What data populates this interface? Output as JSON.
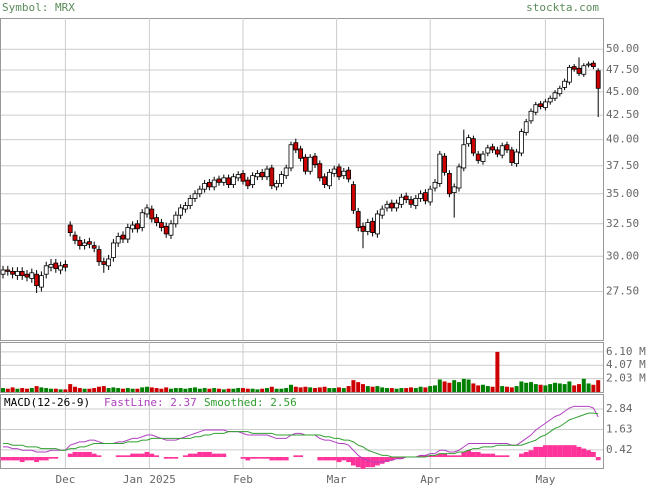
{
  "header": {
    "symbol": "Symbol: MRX",
    "site": "stockta.com"
  },
  "chart_data": [
    {
      "type": "candlestick",
      "log_scale": true,
      "grid": true,
      "up_color": "#ffffff",
      "down_color": "#cc0000",
      "ylim": [
        24.4,
        54
      ],
      "yticks": [
        {
          "value": 50,
          "label": "50.00"
        },
        {
          "value": 47.5,
          "label": "47.50"
        },
        {
          "value": 45,
          "label": "45.00"
        },
        {
          "value": 42.5,
          "label": "42.50"
        },
        {
          "value": 40,
          "label": "40.00"
        },
        {
          "value": 37.5,
          "label": "37.50"
        },
        {
          "value": 35,
          "label": "35.00"
        },
        {
          "value": 32.5,
          "label": "32.50"
        },
        {
          "value": 30,
          "label": "30.00"
        },
        {
          "value": 27.5,
          "label": "27.50"
        }
      ],
      "xticks": [
        {
          "value": 13,
          "label": "Dec"
        },
        {
          "value": 30.5,
          "label": "Jan 2025"
        },
        {
          "value": 50,
          "label": "Feb"
        },
        {
          "value": 69.5,
          "label": "Mar"
        },
        {
          "value": 89,
          "label": "Apr"
        },
        {
          "value": 113,
          "label": "May"
        }
      ],
      "open": [
        28.7,
        29.0,
        28.9,
        28.6,
        28.9,
        28.7,
        28.4,
        28.7,
        27.8,
        28.7,
        29.2,
        29.5,
        29.0,
        29.4,
        32.4,
        31.6,
        31.2,
        30.8,
        31.1,
        30.8,
        30.5,
        29.6,
        29.3,
        29.9,
        31.0,
        31.6,
        31.3,
        32.1,
        32.5,
        32.2,
        33.3,
        33.7,
        33.0,
        32.6,
        32.3,
        31.6,
        32.5,
        33.2,
        33.7,
        34.0,
        34.6,
        35.0,
        35.4,
        36.0,
        35.6,
        36.3,
        36.0,
        36.4,
        35.8,
        36.4,
        36.8,
        36.2,
        35.8,
        36.5,
        36.9,
        36.5,
        37.3,
        35.6,
        35.9,
        36.6,
        37.3,
        39.7,
        39.1,
        38.3,
        37.0,
        38.4,
        37.7,
        36.5,
        35.7,
        36.8,
        37.4,
        36.6,
        37.1,
        35.8,
        33.5,
        32.3,
        31.9,
        32.7,
        31.7,
        33.2,
        33.8,
        34.2,
        33.8,
        34.1,
        34.8,
        34.5,
        34.0,
        34.6,
        35.1,
        34.3,
        35.5,
        35.9,
        38.4,
        36.8,
        35.1,
        35.5,
        37.3,
        39.6,
        40.1,
        38.6,
        37.9,
        38.7,
        39.3,
        39.0,
        38.5,
        39.5,
        39.0,
        37.7,
        38.7,
        40.7,
        41.9,
        42.8,
        43.7,
        43.3,
        43.9,
        44.3,
        44.8,
        45.5,
        46.1,
        47.9,
        47.7,
        47.0,
        48.1,
        48.3,
        47.4
      ],
      "high": [
        29.3,
        29.3,
        29.2,
        29.2,
        29.2,
        29.0,
        29.1,
        29.0,
        28.9,
        29.6,
        29.8,
        29.8,
        29.6,
        29.7,
        32.7,
        31.9,
        31.5,
        31.3,
        31.4,
        31.1,
        30.8,
        29.9,
        30.1,
        31.3,
        31.8,
        31.9,
        32.5,
        32.7,
        32.8,
        33.7,
        34.1,
        34.0,
        33.3,
        32.9,
        32.6,
        32.8,
        33.5,
        34.1,
        34.3,
        34.9,
        35.3,
        35.7,
        36.2,
        36.3,
        36.5,
        36.6,
        36.7,
        36.7,
        36.8,
        37.0,
        37.1,
        36.5,
        36.9,
        37.1,
        37.2,
        37.5,
        37.6,
        36.2,
        37.0,
        37.6,
        39.8,
        40.1,
        39.4,
        38.6,
        38.6,
        38.7,
        38.0,
        36.8,
        37.2,
        37.5,
        37.7,
        37.3,
        37.4,
        36.1,
        33.8,
        32.6,
        32.9,
        33.0,
        33.6,
        34.0,
        34.4,
        34.5,
        34.5,
        35.0,
        35.1,
        34.8,
        34.9,
        35.3,
        35.4,
        35.7,
        36.3,
        38.9,
        38.7,
        37.1,
        35.9,
        37.7,
        41.0,
        40.5,
        40.4,
        38.9,
        38.9,
        39.5,
        39.6,
        39.3,
        39.7,
        39.8,
        39.3,
        39.1,
        41.1,
        42.1,
        43.2,
        43.9,
        44.0,
        44.2,
        44.6,
        45.2,
        45.7,
        46.5,
        48.1,
        48.2,
        49.0,
        48.3,
        48.5,
        48.6,
        47.7
      ],
      "low": [
        28.4,
        28.6,
        28.4,
        28.3,
        28.3,
        28.2,
        28.1,
        27.4,
        27.5,
        28.4,
        28.9,
        28.8,
        28.7,
        28.9,
        31.5,
        30.9,
        30.5,
        30.5,
        30.6,
        30.3,
        29.3,
        28.8,
        29.0,
        29.6,
        30.7,
        31.0,
        31.0,
        31.8,
        31.8,
        31.9,
        33.0,
        32.6,
        32.3,
        31.9,
        31.4,
        31.3,
        32.2,
        32.9,
        33.4,
        33.7,
        34.3,
        34.7,
        35.1,
        35.3,
        35.3,
        35.7,
        35.7,
        35.5,
        35.5,
        36.1,
        35.8,
        35.4,
        35.5,
        36.2,
        36.2,
        36.2,
        35.4,
        35.3,
        35.6,
        36.3,
        37.0,
        38.7,
        37.9,
        36.7,
        36.7,
        37.3,
        36.1,
        35.5,
        35.4,
        36.5,
        36.2,
        36.3,
        36.0,
        33.3,
        31.9,
        30.6,
        31.6,
        31.5,
        31.4,
        32.9,
        33.5,
        33.5,
        33.5,
        33.8,
        34.2,
        33.8,
        33.7,
        34.3,
        34.1,
        34.0,
        35.2,
        35.6,
        36.6,
        34.7,
        33.0,
        35.2,
        37.0,
        39.3,
        38.4,
        37.7,
        37.6,
        38.4,
        38.7,
        38.3,
        38.2,
        38.7,
        37.5,
        37.4,
        38.4,
        40.4,
        41.6,
        42.5,
        43.1,
        43.0,
        43.6,
        44.0,
        44.5,
        45.2,
        45.8,
        47.3,
        46.8,
        46.7,
        47.8,
        47.6,
        42.3
      ],
      "close": [
        29.0,
        28.9,
        28.7,
        28.9,
        28.6,
        28.5,
        28.8,
        27.9,
        28.6,
        29.3,
        29.4,
        29.1,
        29.3,
        29.2,
        31.8,
        31.2,
        30.8,
        31.0,
        30.9,
        30.6,
        29.6,
        29.4,
        29.8,
        31.0,
        31.5,
        31.3,
        32.2,
        32.4,
        32.1,
        33.4,
        33.8,
        32.9,
        32.6,
        32.2,
        31.7,
        32.5,
        33.2,
        33.8,
        34.0,
        34.6,
        35.0,
        35.4,
        35.9,
        35.6,
        36.2,
        36.0,
        36.4,
        35.8,
        36.5,
        36.7,
        36.1,
        35.7,
        36.6,
        36.8,
        36.5,
        37.2,
        35.7,
        35.9,
        36.7,
        37.3,
        39.5,
        39.0,
        38.2,
        37.0,
        38.3,
        37.6,
        36.4,
        35.8,
        36.9,
        37.2,
        36.5,
        37.0,
        36.3,
        33.6,
        32.2,
        31.9,
        32.6,
        31.8,
        33.3,
        33.7,
        34.1,
        33.8,
        34.2,
        34.7,
        34.5,
        34.1,
        34.6,
        35.0,
        34.4,
        35.4,
        36.0,
        38.6,
        36.9,
        35.0,
        35.6,
        37.4,
        39.5,
        40.2,
        38.7,
        38.0,
        38.6,
        39.2,
        39.0,
        38.6,
        39.4,
        39.0,
        37.8,
        38.8,
        40.8,
        41.8,
        42.9,
        43.6,
        43.4,
        43.9,
        44.3,
        44.9,
        45.4,
        46.2,
        47.8,
        47.6,
        47.1,
        48.0,
        48.2,
        47.9,
        45.4
      ]
    },
    {
      "type": "volume",
      "up_color": "#008000",
      "down_color": "#cc0000",
      "ylim": [
        0,
        7.6
      ],
      "yticks": [
        {
          "value": 6.1,
          "label": "6.10 M"
        },
        {
          "value": 4.07,
          "label": "4.07 M"
        },
        {
          "value": 2.03,
          "label": "2.03 M"
        }
      ],
      "values": [
        0.6,
        0.5,
        0.7,
        0.5,
        0.6,
        0.5,
        0.6,
        0.9,
        0.7,
        0.6,
        0.5,
        0.5,
        0.4,
        0.4,
        1.2,
        0.8,
        0.6,
        0.5,
        0.5,
        0.6,
        0.8,
        0.9,
        0.6,
        0.7,
        0.6,
        0.5,
        0.6,
        0.5,
        0.5,
        0.7,
        0.8,
        0.7,
        0.6,
        0.5,
        0.7,
        0.5,
        0.6,
        0.6,
        0.5,
        0.6,
        0.7,
        0.5,
        0.6,
        0.5,
        0.6,
        0.5,
        0.4,
        0.5,
        0.5,
        0.6,
        0.6,
        0.5,
        0.5,
        0.4,
        0.5,
        0.6,
        0.8,
        0.5,
        0.5,
        0.6,
        1.1,
        0.8,
        0.7,
        0.8,
        0.7,
        0.6,
        0.7,
        0.8,
        0.6,
        0.6,
        0.7,
        0.6,
        0.9,
        1.8,
        1.5,
        1.2,
        0.9,
        0.8,
        0.9,
        0.7,
        0.6,
        0.6,
        0.5,
        0.6,
        0.6,
        0.7,
        0.6,
        0.8,
        0.7,
        0.9,
        1.0,
        1.9,
        1.6,
        1.4,
        1.8,
        1.5,
        2.0,
        1.9,
        1.3,
        1.0,
        1.1,
        0.9,
        0.8,
        6.1,
        0.9,
        0.8,
        0.7,
        0.9,
        1.6,
        1.4,
        1.5,
        1.2,
        1.1,
        1.0,
        1.2,
        1.4,
        1.3,
        1.2,
        1.6,
        1.0,
        1.2,
        2.0,
        1.3,
        1.1,
        1.8
      ]
    },
    {
      "type": "macd",
      "title": "MACD(12-26-9)",
      "ylim": [
        -0.65,
        3.73
      ],
      "yticks": [
        2.84,
        1.63,
        0.42
      ],
      "series": [
        {
          "name": "FastLine: 2.37",
          "color": "#b040c0",
          "values": [
            0.6,
            0.6,
            0.5,
            0.5,
            0.4,
            0.4,
            0.4,
            0.3,
            0.3,
            0.3,
            0.4,
            0.4,
            0.4,
            0.4,
            0.7,
            0.8,
            0.9,
            0.9,
            1.0,
            1.0,
            0.9,
            0.8,
            0.8,
            0.8,
            0.9,
            0.9,
            1.0,
            1.1,
            1.1,
            1.2,
            1.3,
            1.3,
            1.2,
            1.1,
            1.0,
            1.0,
            1.0,
            1.1,
            1.2,
            1.3,
            1.4,
            1.5,
            1.6,
            1.6,
            1.6,
            1.6,
            1.6,
            1.5,
            1.5,
            1.5,
            1.4,
            1.3,
            1.3,
            1.3,
            1.3,
            1.3,
            1.2,
            1.1,
            1.1,
            1.1,
            1.3,
            1.4,
            1.4,
            1.3,
            1.3,
            1.3,
            1.1,
            1.0,
            1.0,
            0.9,
            0.8,
            0.8,
            0.7,
            0.4,
            0.1,
            -0.1,
            -0.2,
            -0.3,
            -0.3,
            -0.3,
            -0.2,
            -0.2,
            -0.1,
            -0.1,
            0.0,
            0.0,
            0.0,
            0.1,
            0.1,
            0.2,
            0.2,
            0.4,
            0.4,
            0.3,
            0.3,
            0.4,
            0.6,
            0.8,
            0.8,
            0.8,
            0.8,
            0.8,
            0.8,
            0.8,
            0.8,
            0.8,
            0.7,
            0.7,
            0.9,
            1.1,
            1.3,
            1.6,
            1.8,
            2.0,
            2.2,
            2.4,
            2.5,
            2.7,
            2.9,
            3.0,
            3.0,
            3.0,
            3.0,
            2.9,
            2.37
          ]
        },
        {
          "name": "Smoothed: 2.56",
          "color": "#30a030",
          "values": [
            0.8,
            0.8,
            0.7,
            0.7,
            0.7,
            0.6,
            0.6,
            0.6,
            0.5,
            0.5,
            0.5,
            0.5,
            0.4,
            0.4,
            0.5,
            0.5,
            0.6,
            0.6,
            0.7,
            0.8,
            0.8,
            0.8,
            0.8,
            0.8,
            0.8,
            0.8,
            0.9,
            0.9,
            0.9,
            1.0,
            1.0,
            1.1,
            1.1,
            1.1,
            1.1,
            1.1,
            1.1,
            1.1,
            1.1,
            1.1,
            1.2,
            1.2,
            1.3,
            1.3,
            1.4,
            1.4,
            1.4,
            1.5,
            1.5,
            1.5,
            1.5,
            1.5,
            1.4,
            1.4,
            1.4,
            1.4,
            1.4,
            1.3,
            1.3,
            1.3,
            1.3,
            1.3,
            1.3,
            1.3,
            1.3,
            1.3,
            1.3,
            1.2,
            1.2,
            1.1,
            1.1,
            1.0,
            1.0,
            0.9,
            0.7,
            0.6,
            0.4,
            0.3,
            0.2,
            0.1,
            0.1,
            0.0,
            0.0,
            0.0,
            0.0,
            0.0,
            0.0,
            0.0,
            0.0,
            0.1,
            0.1,
            0.2,
            0.2,
            0.2,
            0.2,
            0.3,
            0.3,
            0.4,
            0.5,
            0.5,
            0.6,
            0.6,
            0.6,
            0.7,
            0.7,
            0.7,
            0.7,
            0.7,
            0.7,
            0.8,
            0.9,
            1.0,
            1.2,
            1.3,
            1.5,
            1.7,
            1.8,
            2.0,
            2.2,
            2.3,
            2.4,
            2.5,
            2.6,
            2.6,
            2.56
          ]
        }
      ],
      "histogram": {
        "color": "#ff3399",
        "values": [
          -0.2,
          -0.2,
          -0.2,
          -0.2,
          -0.3,
          -0.2,
          -0.2,
          -0.3,
          -0.2,
          -0.2,
          -0.1,
          -0.1,
          0.0,
          0.0,
          0.2,
          0.3,
          0.3,
          0.3,
          0.3,
          0.2,
          0.1,
          0.0,
          0.0,
          0.0,
          0.1,
          0.1,
          0.1,
          0.2,
          0.2,
          0.2,
          0.3,
          0.2,
          0.1,
          0.0,
          -0.1,
          -0.1,
          -0.1,
          0.0,
          0.1,
          0.2,
          0.2,
          0.3,
          0.3,
          0.3,
          0.2,
          0.2,
          0.2,
          0.0,
          0.0,
          0.0,
          -0.1,
          -0.2,
          -0.1,
          -0.1,
          -0.1,
          -0.1,
          -0.2,
          -0.2,
          -0.2,
          -0.2,
          0.0,
          0.1,
          0.1,
          0.0,
          0.0,
          0.0,
          -0.2,
          -0.2,
          -0.2,
          -0.2,
          -0.3,
          -0.2,
          -0.3,
          -0.5,
          -0.6,
          -0.7,
          -0.6,
          -0.6,
          -0.5,
          -0.4,
          -0.3,
          -0.2,
          -0.1,
          -0.1,
          0.0,
          0.0,
          0.0,
          0.1,
          0.1,
          0.1,
          0.1,
          0.2,
          0.2,
          0.1,
          0.1,
          0.1,
          0.3,
          0.4,
          0.3,
          0.3,
          0.2,
          0.2,
          0.2,
          0.1,
          0.1,
          0.1,
          0.0,
          0.0,
          0.2,
          0.3,
          0.4,
          0.6,
          0.6,
          0.7,
          0.7,
          0.7,
          0.7,
          0.7,
          0.7,
          0.7,
          0.6,
          0.5,
          0.4,
          0.3,
          -0.19
        ]
      }
    }
  ]
}
